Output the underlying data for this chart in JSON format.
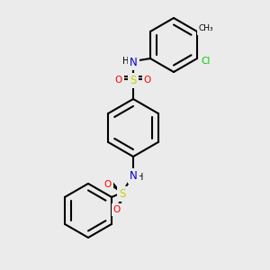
{
  "background_color": "#ebebeb",
  "bond_color": "#000000",
  "bond_width": 1.5,
  "atom_colors": {
    "N": "#0000cc",
    "O": "#ff0000",
    "S": "#cccc00",
    "Cl": "#00cc00",
    "C": "#000000",
    "H": "#000000",
    "CH3": "#000000"
  },
  "font_size": 7.5
}
